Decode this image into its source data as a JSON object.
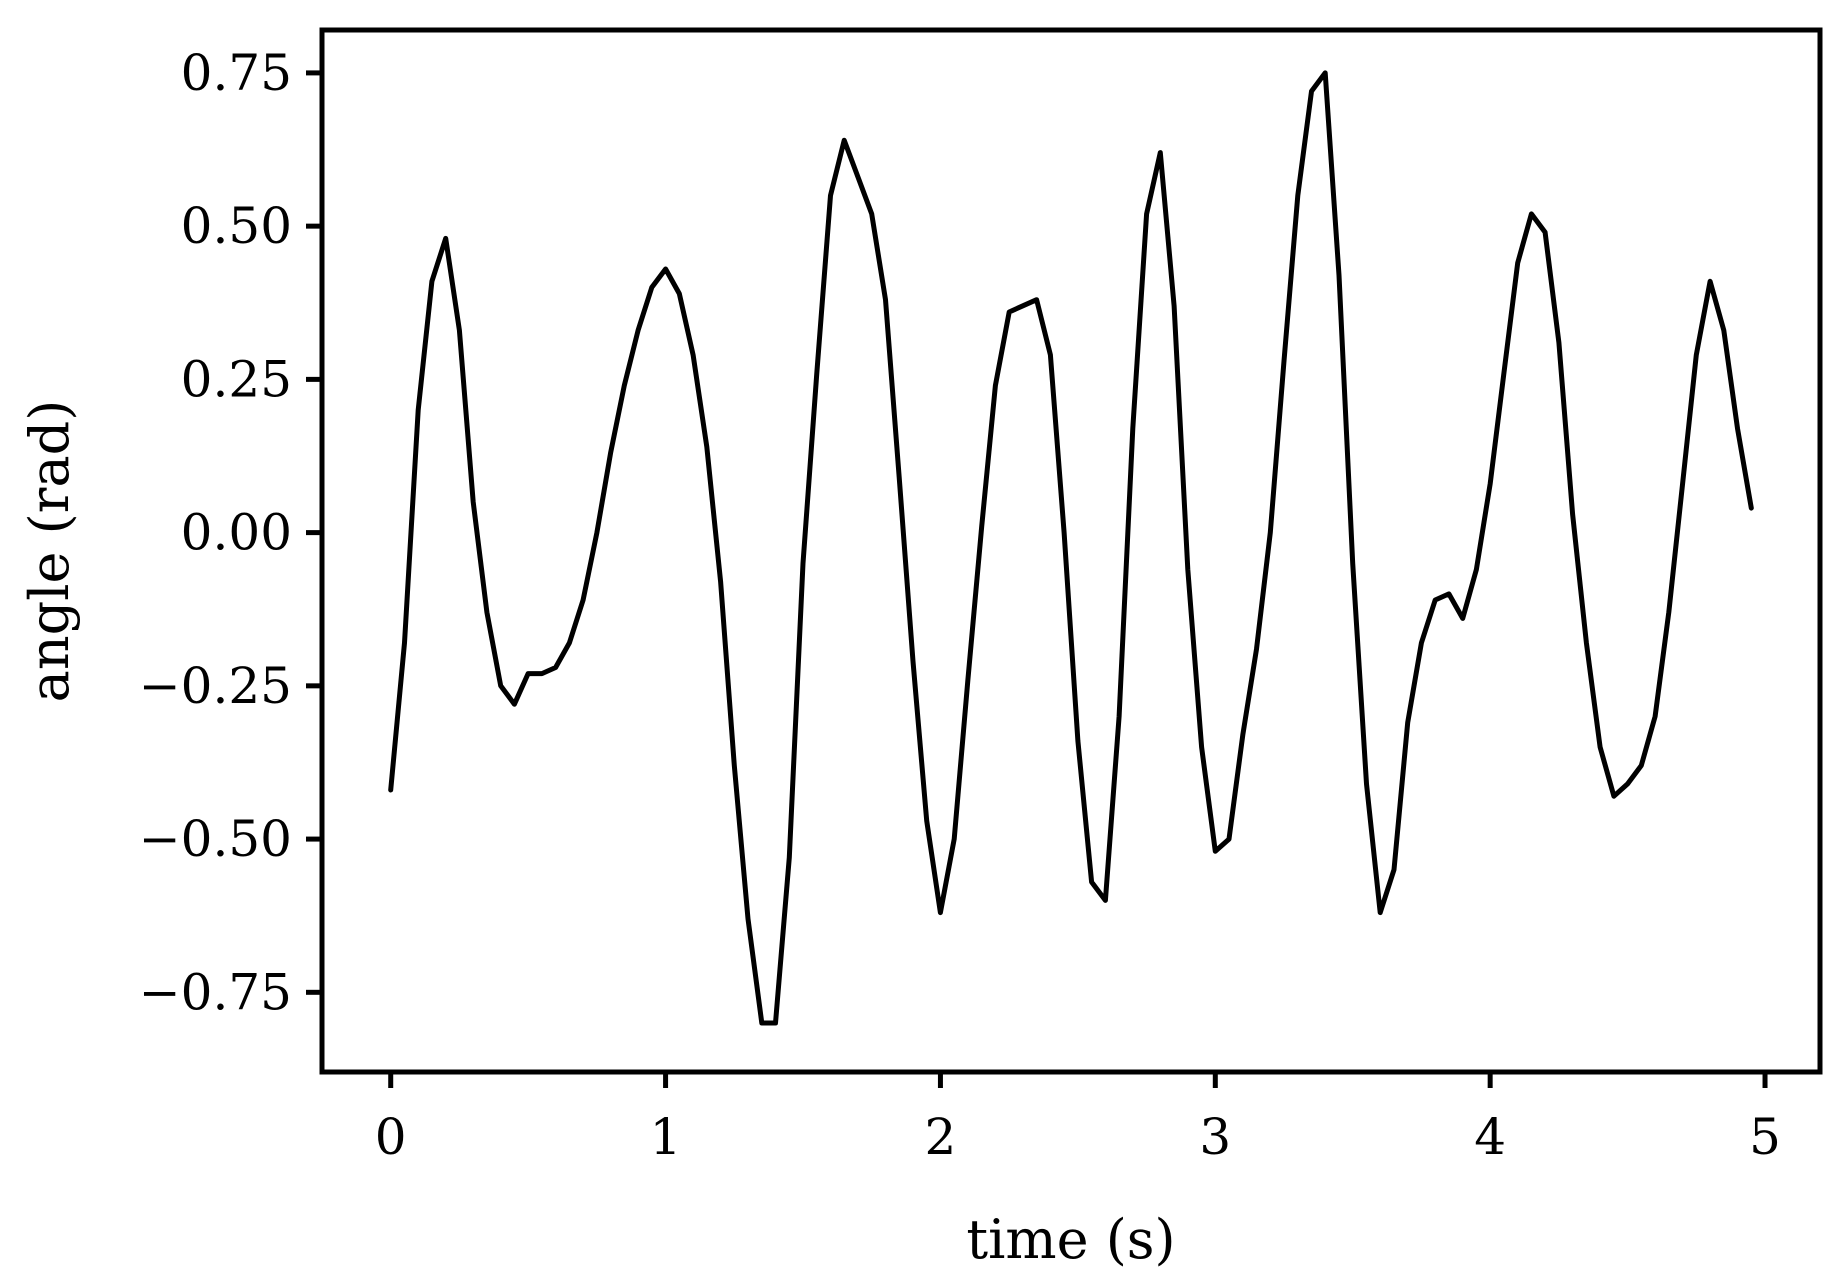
{
  "chart_data": {
    "type": "line",
    "title": "",
    "xlabel": "time (s)",
    "ylabel": "angle (rad)",
    "xlim": [
      -0.25,
      5.2
    ],
    "ylim": [
      -0.88,
      0.82
    ],
    "xticks": [
      0,
      1,
      2,
      3,
      4,
      5
    ],
    "xtick_labels": [
      "0",
      "1",
      "2",
      "3",
      "4",
      "5"
    ],
    "yticks": [
      0.75,
      0.5,
      0.25,
      0.0,
      -0.25,
      -0.5,
      -0.75
    ],
    "ytick_labels": [
      "0.75",
      "0.50",
      "0.25",
      "0.00",
      "−0.25",
      "−0.50",
      "−0.75"
    ],
    "grid": false,
    "line_color": "#000000",
    "series": [
      {
        "x": [
          0.0,
          0.05,
          0.1,
          0.15,
          0.2,
          0.25,
          0.3,
          0.35,
          0.4,
          0.45,
          0.5,
          0.55,
          0.6,
          0.65,
          0.7,
          0.75,
          0.8,
          0.85,
          0.9,
          0.95,
          1.0,
          1.05,
          1.1,
          1.15,
          1.2,
          1.25,
          1.3,
          1.35,
          1.4,
          1.45,
          1.5,
          1.55,
          1.6,
          1.65,
          1.7,
          1.75,
          1.8,
          1.85,
          1.9,
          1.95,
          2.0,
          2.05,
          2.1,
          2.15,
          2.2,
          2.25,
          2.3,
          2.35,
          2.4,
          2.45,
          2.5,
          2.55,
          2.6,
          2.65,
          2.7,
          2.75,
          2.8,
          2.85,
          2.9,
          2.95,
          3.0,
          3.05,
          3.1,
          3.15,
          3.2,
          3.25,
          3.3,
          3.35,
          3.4,
          3.45,
          3.5,
          3.55,
          3.6,
          3.65,
          3.7,
          3.75,
          3.8,
          3.85,
          3.9,
          3.95,
          4.0,
          4.05,
          4.1,
          4.15,
          4.2,
          4.25,
          4.3,
          4.35,
          4.4,
          4.45,
          4.5,
          4.55,
          4.6,
          4.65,
          4.7,
          4.75,
          4.8,
          4.85,
          4.9,
          4.95
        ],
        "values": [
          -0.42,
          -0.18,
          0.2,
          0.41,
          0.48,
          0.33,
          0.05,
          -0.13,
          -0.25,
          -0.28,
          -0.23,
          -0.23,
          -0.22,
          -0.18,
          -0.11,
          0.0,
          0.13,
          0.24,
          0.33,
          0.4,
          0.43,
          0.39,
          0.29,
          0.14,
          -0.08,
          -0.38,
          -0.63,
          -0.8,
          -0.8,
          -0.53,
          -0.05,
          0.26,
          0.55,
          0.64,
          0.58,
          0.52,
          0.38,
          0.09,
          -0.21,
          -0.47,
          -0.62,
          -0.5,
          -0.24,
          0.01,
          0.24,
          0.36,
          0.37,
          0.38,
          0.29,
          0.0,
          -0.34,
          -0.57,
          -0.6,
          -0.3,
          0.17,
          0.52,
          0.62,
          0.37,
          -0.06,
          -0.35,
          -0.52,
          -0.5,
          -0.33,
          -0.19,
          0.0,
          0.28,
          0.55,
          0.72,
          0.75,
          0.42,
          -0.05,
          -0.41,
          -0.62,
          -0.55,
          -0.31,
          -0.18,
          -0.11,
          -0.1,
          -0.14,
          -0.06,
          0.08,
          0.26,
          0.44,
          0.52,
          0.49,
          0.31,
          0.03,
          -0.18,
          -0.35,
          -0.43,
          -0.41,
          -0.38,
          -0.3,
          -0.13,
          0.08,
          0.29,
          0.41,
          0.33,
          0.17,
          0.04
        ]
      }
    ]
  }
}
